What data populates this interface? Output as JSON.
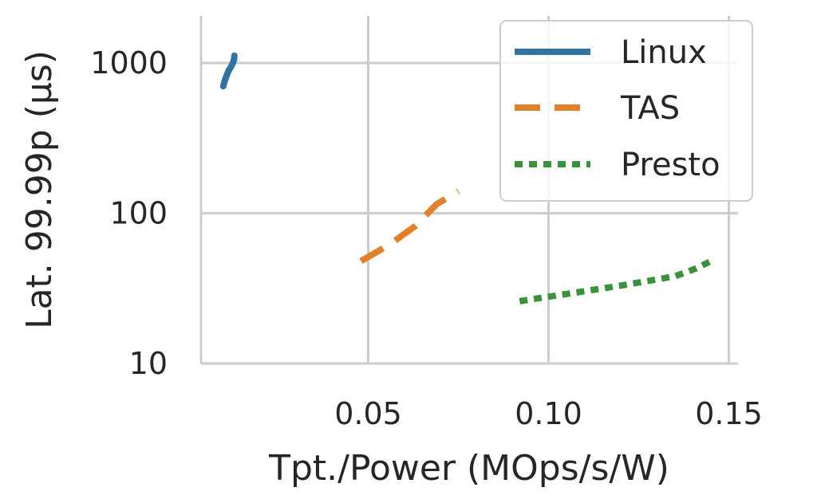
{
  "chart_data": {
    "type": "line",
    "title": "",
    "xlabel": "Tpt./Power (MOps/s/W)",
    "ylabel": "Lat. 99.99p (µs)",
    "xlim": [
      0.003,
      0.15
    ],
    "ylim": [
      10,
      2000
    ],
    "yscale": "log",
    "xticks": [
      0.05,
      0.1,
      0.15
    ],
    "xtick_labels": [
      "0.05",
      "0.10",
      "0.15"
    ],
    "yticks": [
      10,
      100,
      1000
    ],
    "ytick_labels": [
      "10",
      "100",
      "1000"
    ],
    "grid": true,
    "legend_position": "top-right",
    "series": [
      {
        "name": "Linux",
        "color": "#3274a1",
        "dash": "solid",
        "x": [
          0.0098,
          0.0102,
          0.0108,
          0.0113,
          0.0119,
          0.0125,
          0.0128,
          0.0129
        ],
        "y": [
          700,
          760,
          830,
          890,
          940,
          1000,
          1060,
          1120
        ]
      },
      {
        "name": "TAS",
        "color": "#e1812c",
        "dash": "dashed",
        "x": [
          0.048,
          0.056,
          0.063,
          0.069,
          0.075
        ],
        "y": [
          48,
          62,
          82,
          115,
          140
        ]
      },
      {
        "name": "Presto",
        "color": "#3a923a",
        "dash": "dotted",
        "x": [
          0.092,
          0.105,
          0.12,
          0.135,
          0.141,
          0.145
        ],
        "y": [
          26,
          29,
          33,
          38,
          43,
          48
        ]
      }
    ]
  }
}
